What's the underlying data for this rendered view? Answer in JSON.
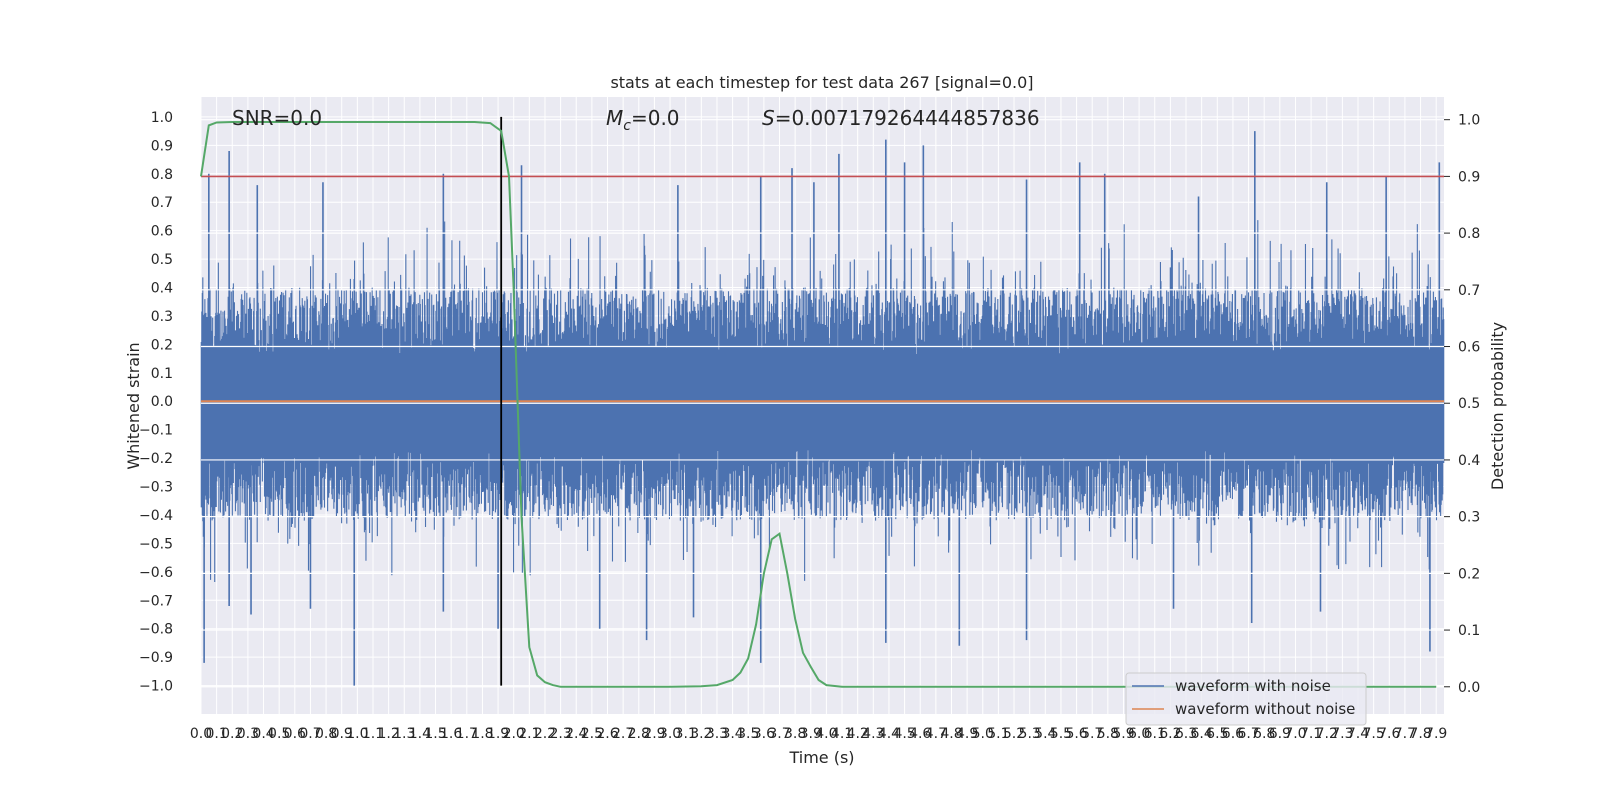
{
  "chart_data": {
    "type": "line",
    "title": "stats at each timestep for test data 267 [signal=0.0]",
    "xlabel": "Time (s)",
    "ylabel": "Whitened strain",
    "ylabel_right": "Detection probability",
    "xlim": [
      0.0,
      7.95
    ],
    "ylim": [
      -1.1,
      1.07
    ],
    "ylim_right": [
      -0.048,
      1.04
    ],
    "x_ticks": [
      "0.0",
      "0.1",
      "0.2",
      "0.3",
      "0.4",
      "0.5",
      "0.6",
      "0.7",
      "0.8",
      "0.9",
      "1.0",
      "1.1",
      "1.2",
      "1.3",
      "1.4",
      "1.5",
      "1.6",
      "1.7",
      "1.8",
      "1.9",
      "2.0",
      "2.1",
      "2.2",
      "2.3",
      "2.4",
      "2.5",
      "2.6",
      "2.7",
      "2.8",
      "2.9",
      "3.0",
      "3.1",
      "3.2",
      "3.3",
      "3.4",
      "3.5",
      "3.6",
      "3.7",
      "3.8",
      "3.9",
      "4.0",
      "4.1",
      "4.2",
      "4.3",
      "4.4",
      "4.5",
      "4.6",
      "4.7",
      "4.8",
      "4.9",
      "5.0",
      "5.1",
      "5.2",
      "5.3",
      "5.4",
      "5.5",
      "5.6",
      "5.7",
      "5.8",
      "5.9",
      "6.0",
      "6.1",
      "6.2",
      "6.3",
      "6.4",
      "6.5",
      "6.6",
      "6.7",
      "6.8",
      "6.9",
      "7.0",
      "7.1",
      "7.2",
      "7.3",
      "7.4",
      "7.5",
      "7.6",
      "7.7",
      "7.8",
      "7.9"
    ],
    "y_ticks": [
      "−1.0",
      "−0.9",
      "−0.8",
      "−0.7",
      "−0.6",
      "−0.5",
      "−0.4",
      "−0.3",
      "−0.2",
      "−0.1",
      "0.0",
      "0.1",
      "0.2",
      "0.3",
      "0.4",
      "0.5",
      "0.6",
      "0.7",
      "0.8",
      "0.9",
      "1.0"
    ],
    "y_right_ticks": [
      "0.0",
      "0.1",
      "0.2",
      "0.3",
      "0.4",
      "0.5",
      "0.6",
      "0.7",
      "0.8",
      "0.9",
      "1.0"
    ],
    "annotations": {
      "snr": "SNR=0.0",
      "mc_symbol": "M",
      "mc_sub": "c",
      "mc_value": "=0.0",
      "s_symbol": "S",
      "s_value": "=0.007179264444857836"
    },
    "series": [
      {
        "name": "waveform with noise",
        "color": "#4c72b0",
        "axis": "left",
        "description": "whitened noisy strain, dense fluctuations roughly within ±0.4 with spikes up to about ±1.0",
        "envelope_upper": 0.4,
        "envelope_lower": -0.42,
        "peaks_x": [
          0.05,
          0.18,
          0.36,
          0.78,
          1.55,
          2.05,
          3.05,
          3.58,
          3.78,
          3.92,
          4.08,
          4.38,
          4.5,
          4.62,
          5.28,
          5.62,
          5.78,
          6.38,
          6.74,
          7.2,
          7.58,
          7.92
        ],
        "peaks_y": [
          0.8,
          0.88,
          0.76,
          0.77,
          0.8,
          0.83,
          0.76,
          0.79,
          0.82,
          0.77,
          0.87,
          0.92,
          0.84,
          0.9,
          0.78,
          0.84,
          0.8,
          0.72,
          0.95,
          0.77,
          0.79,
          0.84
        ],
        "troughs_x": [
          0.02,
          0.18,
          0.32,
          0.7,
          0.98,
          1.55,
          1.9,
          2.55,
          2.85,
          3.15,
          3.58,
          4.38,
          4.85,
          5.28,
          6.22,
          6.72,
          7.16,
          7.86
        ],
        "troughs_y": [
          -0.92,
          -0.72,
          -0.75,
          -0.73,
          -1.0,
          -0.74,
          -0.8,
          -0.8,
          -0.84,
          -0.76,
          -0.92,
          -0.85,
          -0.86,
          -0.84,
          -0.73,
          -0.78,
          -0.74,
          -0.88
        ]
      },
      {
        "name": "waveform without noise",
        "color": "#dd8452",
        "axis": "left",
        "x": [
          0.0,
          7.95
        ],
        "y": [
          0.0,
          0.0
        ]
      },
      {
        "name": "detection probability",
        "color": "#55a868",
        "axis": "right",
        "x": [
          0.0,
          0.05,
          0.1,
          0.2,
          0.5,
          1.0,
          1.5,
          1.75,
          1.85,
          1.92,
          1.97,
          2.0,
          2.05,
          2.1,
          2.15,
          2.2,
          2.25,
          2.3,
          2.4,
          2.5,
          3.0,
          3.2,
          3.3,
          3.4,
          3.45,
          3.5,
          3.55,
          3.6,
          3.65,
          3.7,
          3.75,
          3.8,
          3.85,
          3.9,
          3.95,
          4.0,
          4.1,
          4.2,
          4.5,
          5.0,
          6.0,
          7.0,
          7.9
        ],
        "y": [
          0.9,
          0.99,
          0.995,
          0.996,
          0.996,
          0.996,
          0.996,
          0.996,
          0.994,
          0.98,
          0.9,
          0.7,
          0.3,
          0.07,
          0.02,
          0.008,
          0.003,
          0.0,
          0.0,
          0.0,
          0.0,
          0.001,
          0.003,
          0.012,
          0.025,
          0.05,
          0.11,
          0.2,
          0.26,
          0.27,
          0.2,
          0.12,
          0.06,
          0.035,
          0.012,
          0.003,
          0.0,
          0.0,
          0.0,
          0.0,
          0.0,
          0.0,
          0.0
        ]
      }
    ],
    "threshold": {
      "value": 0.9,
      "axis": "right",
      "color": "#c44e52"
    },
    "vline": {
      "x": 1.92,
      "color": "#000000",
      "y_range": [
        -1.0,
        1.0
      ]
    },
    "legend": {
      "placement": "lower right",
      "entries": [
        "waveform with noise",
        "waveform without noise"
      ]
    },
    "grid": true
  }
}
